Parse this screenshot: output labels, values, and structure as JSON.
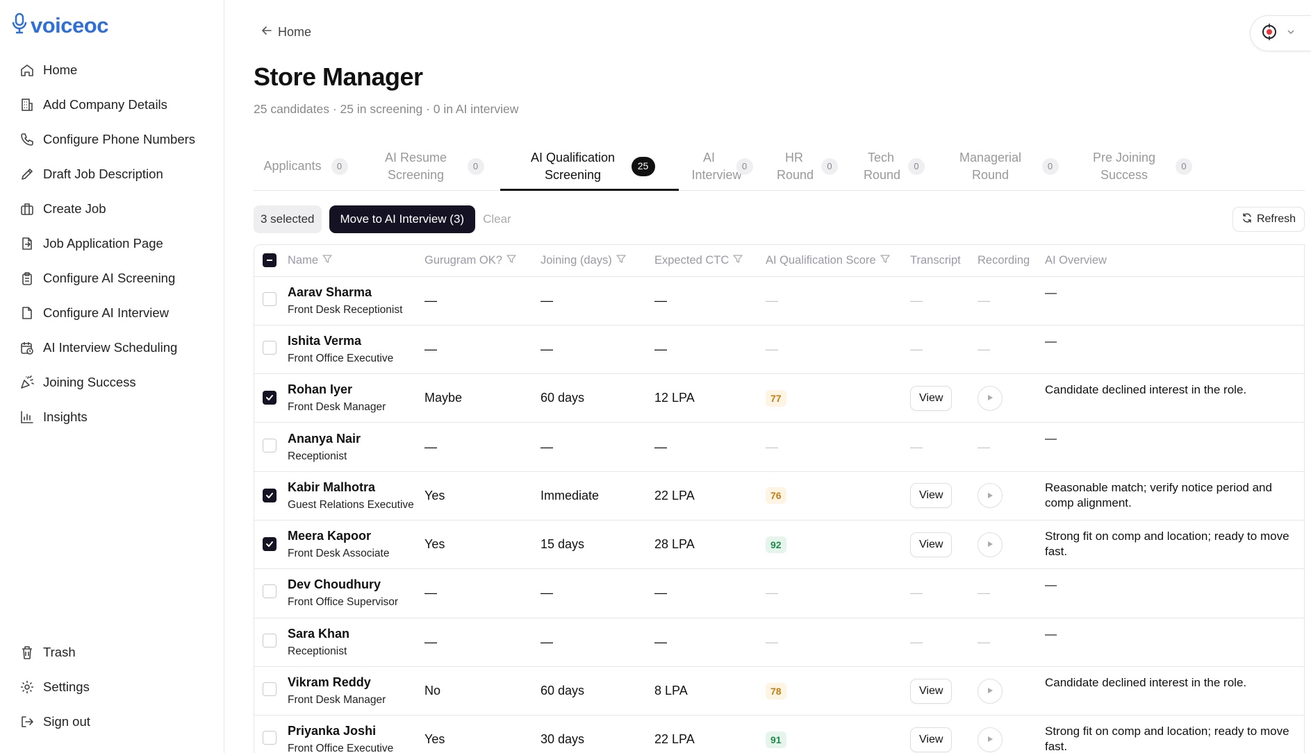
{
  "sidebar": {
    "logo": "voiceoc",
    "items": [
      {
        "label": "Home",
        "icon": "home-icon"
      },
      {
        "label": "Add Company Details",
        "icon": "building-icon"
      },
      {
        "label": "Configure Phone Numbers",
        "icon": "phone-icon"
      },
      {
        "label": "Draft Job Description",
        "icon": "pencil-icon"
      },
      {
        "label": "Create Job",
        "icon": "briefcase-icon"
      },
      {
        "label": "Job Application Page",
        "icon": "file-export-icon"
      },
      {
        "label": "Configure AI Screening",
        "icon": "clipboard-icon"
      },
      {
        "label": "Configure AI Interview",
        "icon": "document-icon"
      },
      {
        "label": "AI Interview Scheduling",
        "icon": "calendar-clock-icon"
      },
      {
        "label": "Joining Success",
        "icon": "party-popper-icon"
      },
      {
        "label": "Insights",
        "icon": "bar-chart-icon"
      }
    ],
    "bottom_items": [
      {
        "label": "Trash",
        "icon": "trash-icon"
      },
      {
        "label": "Settings",
        "icon": "gear-icon"
      },
      {
        "label": "Sign out",
        "icon": "sign-out-icon"
      }
    ]
  },
  "header": {
    "back_label": "Home",
    "title": "Store Manager",
    "subtitle": "25 candidates · 25 in screening · 0 in AI interview"
  },
  "tabs": [
    {
      "label": "Applicants",
      "count": "0"
    },
    {
      "label": "AI Resume Screening",
      "count": "0"
    },
    {
      "label": "AI Qualification Screening",
      "count": "25",
      "active": true
    },
    {
      "label": "AI Interview",
      "count": "0"
    },
    {
      "label": "HR Round",
      "count": "0"
    },
    {
      "label": "Tech Round",
      "count": "0"
    },
    {
      "label": "Managerial Round",
      "count": "0"
    },
    {
      "label": "Pre Joining Success",
      "count": "0"
    }
  ],
  "toolbar": {
    "selected_label": "3 selected",
    "move_label": "Move to AI Interview (3)",
    "clear_label": "Clear",
    "refresh_label": "Refresh"
  },
  "table": {
    "columns": [
      "Name",
      "Gurugram OK?",
      "Joining (days)",
      "Expected CTC",
      "AI Qualification Score",
      "Transcript",
      "Recording",
      "AI Overview"
    ],
    "view_label": "View",
    "rows": [
      {
        "name": "Aarav Sharma",
        "role": "Front Desk Receptionist",
        "checked": false,
        "gurugram": "—",
        "joining": "—",
        "ctc": "—",
        "score": "",
        "overview": "—"
      },
      {
        "name": "Ishita Verma",
        "role": "Front Office Executive",
        "checked": false,
        "gurugram": "—",
        "joining": "—",
        "ctc": "—",
        "score": "",
        "overview": "—"
      },
      {
        "name": "Rohan Iyer",
        "role": "Front Desk Manager",
        "checked": true,
        "gurugram": "Maybe",
        "joining": "60 days",
        "ctc": "12 LPA",
        "score": "77",
        "overview": "Candidate declined interest in the role."
      },
      {
        "name": "Ananya Nair",
        "role": "Receptionist",
        "checked": false,
        "gurugram": "—",
        "joining": "—",
        "ctc": "—",
        "score": "",
        "overview": "—"
      },
      {
        "name": "Kabir Malhotra",
        "role": "Guest Relations Executive",
        "checked": true,
        "gurugram": "Yes",
        "joining": "Immediate",
        "ctc": "22 LPA",
        "score": "76",
        "overview": "Reasonable match; verify notice period and comp alignment."
      },
      {
        "name": "Meera Kapoor",
        "role": "Front Desk Associate",
        "checked": true,
        "gurugram": "Yes",
        "joining": "15 days",
        "ctc": "28 LPA",
        "score": "92",
        "overview": "Strong fit on comp and location; ready to move fast."
      },
      {
        "name": "Dev Choudhury",
        "role": "Front Office Supervisor",
        "checked": false,
        "gurugram": "—",
        "joining": "—",
        "ctc": "—",
        "score": "",
        "overview": "—"
      },
      {
        "name": "Sara Khan",
        "role": "Receptionist",
        "checked": false,
        "gurugram": "—",
        "joining": "—",
        "ctc": "—",
        "score": "",
        "overview": "—"
      },
      {
        "name": "Vikram Reddy",
        "role": "Front Desk Manager",
        "checked": false,
        "gurugram": "No",
        "joining": "60 days",
        "ctc": "8 LPA",
        "score": "78",
        "overview": "Candidate declined interest in the role."
      },
      {
        "name": "Priyanka Joshi",
        "role": "Front Office Executive",
        "checked": false,
        "gurugram": "Yes",
        "joining": "30 days",
        "ctc": "22 LPA",
        "score": "91",
        "overview": "Strong fit on comp and location; ready to move fast."
      }
    ]
  },
  "colors": {
    "brand": "#2f6fd8",
    "primary_button": "#141223",
    "score_mid": "#c27d13",
    "score_high": "#1f8a4c"
  }
}
